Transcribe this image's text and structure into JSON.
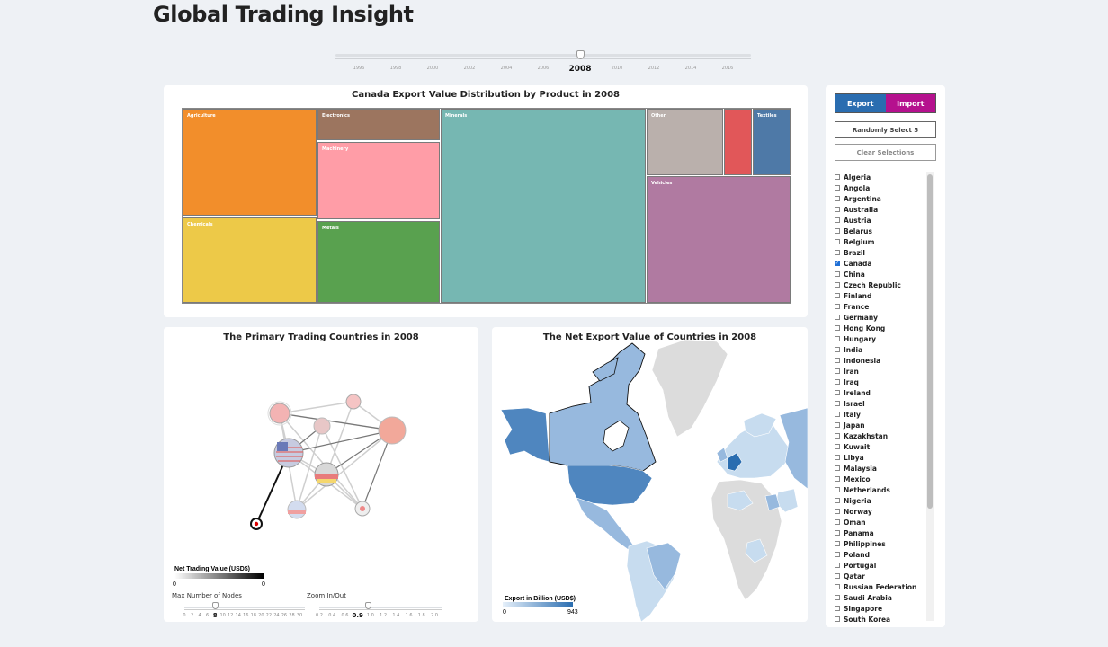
{
  "app": {
    "title": "Global Trading Insight"
  },
  "year_slider": {
    "labels": [
      "1996",
      "1998",
      "2000",
      "2002",
      "2004",
      "2006",
      "2008",
      "2010",
      "2012",
      "2014",
      "2016"
    ],
    "selected": "2008",
    "selected_index": 6
  },
  "treemap": {
    "title": "Canada Export Value Distribution by Product in 2008",
    "tiles": [
      {
        "label": "Agriculture",
        "color": "#f28e2b"
      },
      {
        "label": "Chemicals",
        "color": "#edc948"
      },
      {
        "label": "Electronics",
        "color": "#9c755f"
      },
      {
        "label": "Machinery",
        "color": "#ff9da7"
      },
      {
        "label": "Metals",
        "color": "#59a14f"
      },
      {
        "label": "Minerals",
        "color": "#76b7b2"
      },
      {
        "label": "Other",
        "color": "#bab0ac"
      },
      {
        "label": "",
        "color": "#e15759"
      },
      {
        "label": "Textiles",
        "color": "#4e79a7"
      },
      {
        "label": "Vehicles",
        "color": "#b07aa1"
      }
    ]
  },
  "network": {
    "title": "The Primary Trading Countries in 2008",
    "legend_title": "Net Trading Value (USD$)",
    "legend_min": "0",
    "legend_max": "0",
    "nodes_slider": {
      "label": "Max Number of Nodes",
      "ticks": [
        "0",
        "2",
        "4",
        "6",
        "8",
        "10",
        "12",
        "14",
        "16",
        "18",
        "20",
        "22",
        "24",
        "26",
        "28",
        "30"
      ],
      "selected": "8",
      "selected_index": 4
    },
    "zoom_slider": {
      "label": "Zoom In/Out",
      "ticks": [
        "0.2",
        "0.4",
        "0.6",
        "0.9",
        "1.0",
        "1.2",
        "1.4",
        "1.6",
        "1.8",
        "2.0"
      ],
      "selected": "0.9",
      "selected_index": 3
    }
  },
  "map": {
    "title": "The Net Export Value of Countries in 2008",
    "legend_title": "Export in Billion (USD$)",
    "legend_min": "0",
    "legend_max": "943"
  },
  "controls": {
    "export_label": "Export",
    "import_label": "Import",
    "export_color": "#2a6db0",
    "import_color": "#b5118e",
    "random_label": "Randomly Select 5",
    "clear_label": "Clear Selections",
    "countries": [
      {
        "name": "Algeria",
        "checked": false
      },
      {
        "name": "Angola",
        "checked": false
      },
      {
        "name": "Argentina",
        "checked": false
      },
      {
        "name": "Australia",
        "checked": false
      },
      {
        "name": "Austria",
        "checked": false
      },
      {
        "name": "Belarus",
        "checked": false
      },
      {
        "name": "Belgium",
        "checked": false
      },
      {
        "name": "Brazil",
        "checked": false
      },
      {
        "name": "Canada",
        "checked": true
      },
      {
        "name": "China",
        "checked": false
      },
      {
        "name": "Czech Republic",
        "checked": false
      },
      {
        "name": "Finland",
        "checked": false
      },
      {
        "name": "France",
        "checked": false
      },
      {
        "name": "Germany",
        "checked": false
      },
      {
        "name": "Hong Kong",
        "checked": false
      },
      {
        "name": "Hungary",
        "checked": false
      },
      {
        "name": "India",
        "checked": false
      },
      {
        "name": "Indonesia",
        "checked": false
      },
      {
        "name": "Iran",
        "checked": false
      },
      {
        "name": "Iraq",
        "checked": false
      },
      {
        "name": "Ireland",
        "checked": false
      },
      {
        "name": "Israel",
        "checked": false
      },
      {
        "name": "Italy",
        "checked": false
      },
      {
        "name": "Japan",
        "checked": false
      },
      {
        "name": "Kazakhstan",
        "checked": false
      },
      {
        "name": "Kuwait",
        "checked": false
      },
      {
        "name": "Libya",
        "checked": false
      },
      {
        "name": "Malaysia",
        "checked": false
      },
      {
        "name": "Mexico",
        "checked": false
      },
      {
        "name": "Netherlands",
        "checked": false
      },
      {
        "name": "Nigeria",
        "checked": false
      },
      {
        "name": "Norway",
        "checked": false
      },
      {
        "name": "Oman",
        "checked": false
      },
      {
        "name": "Panama",
        "checked": false
      },
      {
        "name": "Philippines",
        "checked": false
      },
      {
        "name": "Poland",
        "checked": false
      },
      {
        "name": "Portugal",
        "checked": false
      },
      {
        "name": "Qatar",
        "checked": false
      },
      {
        "name": "Russian Federation",
        "checked": false
      },
      {
        "name": "Saudi Arabia",
        "checked": false
      },
      {
        "name": "Singapore",
        "checked": false
      },
      {
        "name": "South Korea",
        "checked": false
      }
    ]
  }
}
